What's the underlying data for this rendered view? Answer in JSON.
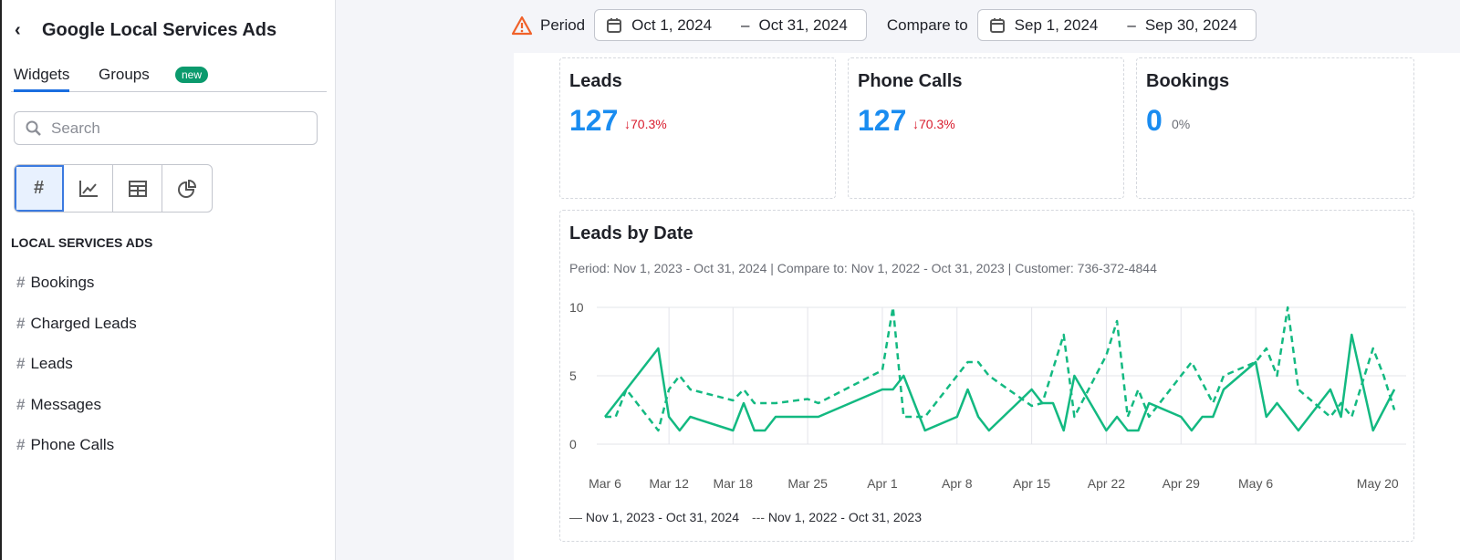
{
  "sidebar": {
    "title": "Google Local Services Ads",
    "tabs": [
      "Widgets",
      "Groups"
    ],
    "new_badge": "new",
    "search_placeholder": "Search",
    "section": "LOCAL SERVICES ADS",
    "items": [
      "Bookings",
      "Charged Leads",
      "Leads",
      "Messages",
      "Phone Calls"
    ],
    "widget_types": [
      "number",
      "line-chart",
      "table",
      "pie-chart"
    ]
  },
  "topbar": {
    "period_label": "Period",
    "period_start": "Oct 1, 2024",
    "period_end": "Oct 31, 2024",
    "compare_label": "Compare to",
    "compare_start": "Sep 1, 2024",
    "compare_end": "Sep 30, 2024",
    "dash": "–"
  },
  "cards": [
    {
      "title": "Leads",
      "value": "127",
      "delta": "↓70.3%"
    },
    {
      "title": "Phone Calls",
      "value": "127",
      "delta": "↓70.3%"
    },
    {
      "title": "Bookings",
      "value": "0",
      "delta": "0%"
    }
  ],
  "colors": {
    "accent": "#1a8cf0",
    "negative": "#d81b2c",
    "series": "#13b981",
    "warning": "#f0612a"
  },
  "chart_data": {
    "type": "line",
    "title": "Leads by Date",
    "subtitle": "Period: Nov 1, 2023 - Oct 31, 2024 | Compare to: Nov 1, 2022 - Oct 31, 2023 | Customer: 736-372-4844",
    "yticks": [
      "0",
      "5",
      "10"
    ],
    "ylim": [
      0,
      10
    ],
    "xticks": [
      "Mar 6",
      "Mar 12",
      "Mar 18",
      "Mar 25",
      "Apr 1",
      "Apr 8",
      "Apr 15",
      "Apr 22",
      "Apr 29",
      "May 6",
      "May 20"
    ],
    "grid": true,
    "legend_position": "bottom-left",
    "series": [
      {
        "name": "Nov 1, 2023 - Oct 31, 2024",
        "style": "solid",
        "points": [
          [
            "Mar 6",
            2
          ],
          [
            "Mar 11",
            7
          ],
          [
            "Mar 12",
            2
          ],
          [
            "Mar 13",
            1
          ],
          [
            "Mar 14",
            2
          ],
          [
            "Mar 18",
            1
          ],
          [
            "Mar 19",
            3
          ],
          [
            "Mar 20",
            1
          ],
          [
            "Mar 21",
            1
          ],
          [
            "Mar 22",
            2
          ],
          [
            "Mar 26",
            2
          ],
          [
            "Apr 1",
            4
          ],
          [
            "Apr 2",
            4
          ],
          [
            "Apr 3",
            5
          ],
          [
            "Apr 5",
            1
          ],
          [
            "Apr 8",
            2
          ],
          [
            "Apr 9",
            4
          ],
          [
            "Apr 10",
            2
          ],
          [
            "Apr 11",
            1
          ],
          [
            "Apr 15",
            4
          ],
          [
            "Apr 16",
            3
          ],
          [
            "Apr 17",
            3
          ],
          [
            "Apr 18",
            1
          ],
          [
            "Apr 19",
            5
          ],
          [
            "Apr 22",
            1
          ],
          [
            "Apr 23",
            2
          ],
          [
            "Apr 24",
            1
          ],
          [
            "Apr 25",
            1
          ],
          [
            "Apr 26",
            3
          ],
          [
            "Apr 29",
            2
          ],
          [
            "Apr 30",
            1
          ],
          [
            "May 1",
            2
          ],
          [
            "May 2",
            2
          ],
          [
            "May 3",
            4
          ],
          [
            "May 6",
            6
          ],
          [
            "May 7",
            2
          ],
          [
            "May 8",
            3
          ],
          [
            "May 10",
            1
          ],
          [
            "May 13",
            4
          ],
          [
            "May 14",
            2
          ],
          [
            "May 15",
            8
          ],
          [
            "May 17",
            1
          ],
          [
            "May 19",
            4
          ]
        ]
      },
      {
        "name": "Nov 1, 2022 - Oct 31, 2023",
        "style": "dashed",
        "points": [
          [
            "Mar 6",
            2
          ],
          [
            "Mar 7",
            2
          ],
          [
            "Mar 8",
            4
          ],
          [
            "Mar 11",
            1
          ],
          [
            "Mar 12",
            4
          ],
          [
            "Mar 13",
            5
          ],
          [
            "Mar 14",
            4
          ],
          [
            "Mar 18",
            3.2
          ],
          [
            "Mar 19",
            4
          ],
          [
            "Mar 20",
            3
          ],
          [
            "Mar 22",
            3
          ],
          [
            "Mar 25",
            3.3
          ],
          [
            "Mar 26",
            3
          ],
          [
            "Apr 1",
            5.4
          ],
          [
            "Apr 2",
            10
          ],
          [
            "Apr 3",
            2
          ],
          [
            "Apr 5",
            2
          ],
          [
            "Apr 8",
            5
          ],
          [
            "Apr 9",
            6
          ],
          [
            "Apr 10",
            6
          ],
          [
            "Apr 11",
            5
          ],
          [
            "Apr 15",
            2.8
          ],
          [
            "Apr 16",
            3
          ],
          [
            "Apr 18",
            8
          ],
          [
            "Apr 19",
            2
          ],
          [
            "Apr 22",
            6.5
          ],
          [
            "Apr 23",
            9
          ],
          [
            "Apr 24",
            2
          ],
          [
            "Apr 25",
            4
          ],
          [
            "Apr 26",
            2
          ],
          [
            "Apr 30",
            6
          ],
          [
            "May 2",
            3
          ],
          [
            "May 3",
            5
          ],
          [
            "May 6",
            6
          ],
          [
            "May 7",
            7
          ],
          [
            "May 8",
            5
          ],
          [
            "May 9",
            10
          ],
          [
            "May 10",
            4
          ],
          [
            "May 13",
            2
          ],
          [
            "May 14",
            3
          ],
          [
            "May 15",
            2
          ],
          [
            "May 17",
            7
          ],
          [
            "May 18",
            5
          ],
          [
            "May 19",
            2.5
          ]
        ]
      }
    ]
  }
}
